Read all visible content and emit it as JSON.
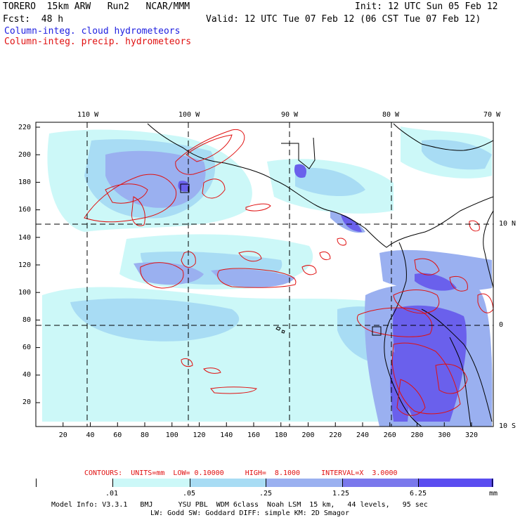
{
  "header": {
    "model": "TORERO  15km ARW   Run2   NCAR/MMM",
    "init": "Init: 12 UTC Sun 05 Feb 12",
    "fcst": "Fcst:  48 h",
    "valid": "Valid: 12 UTC Tue 07 Feb 12 (06 CST Tue 07 Feb 12)",
    "field1": "Column-integ. cloud hydrometeors",
    "field2": "Column-integ. precip. hydrometeors"
  },
  "top_ticks": [
    "110 W",
    "100 W",
    "90 W",
    "80 W",
    "70 W"
  ],
  "right_ticks": [
    "10 N",
    "0",
    "10 S"
  ],
  "y_ticks": [
    "220",
    "200",
    "180",
    "160",
    "140",
    "120",
    "100",
    "80",
    "60",
    "40",
    "20"
  ],
  "x_ticks": [
    "20",
    "40",
    "60",
    "80",
    "100",
    "120",
    "140",
    "160",
    "180",
    "200",
    "220",
    "240",
    "260",
    "280",
    "300",
    "320"
  ],
  "contour_info": "CONTOURS:  UNITS=mm  LOW= 0.10000     HIGH=  8.1000     INTERVAL=X  3.0000",
  "colorbar": {
    "colors": [
      "#ffffff",
      "#ccf8f8",
      "#a8dcf4",
      "#9ab0f0",
      "#7a78ec",
      "#5a4cf0",
      "#2a20f0"
    ],
    "labels": [
      ".01",
      ".05",
      ".25",
      "1.25",
      "6.25"
    ],
    "units": "mm"
  },
  "footer": {
    "line1": "Model Info: V3.3.1   BMJ      YSU PBL  WDM 6class  Noah LSM  15 km,   44 levels,   95 sec",
    "line2": "LW: Godd SW: Goddard DIFF: simple KM: 2D Smagor"
  },
  "map_colors": {
    "cloud_light": "#ccf8f8",
    "cloud_mid": "#a8dcf4",
    "cloud_dark": "#9ab0f0",
    "cloud_core": "#6a60ec",
    "precip_contour": "#e01010",
    "coastline": "#000000"
  }
}
